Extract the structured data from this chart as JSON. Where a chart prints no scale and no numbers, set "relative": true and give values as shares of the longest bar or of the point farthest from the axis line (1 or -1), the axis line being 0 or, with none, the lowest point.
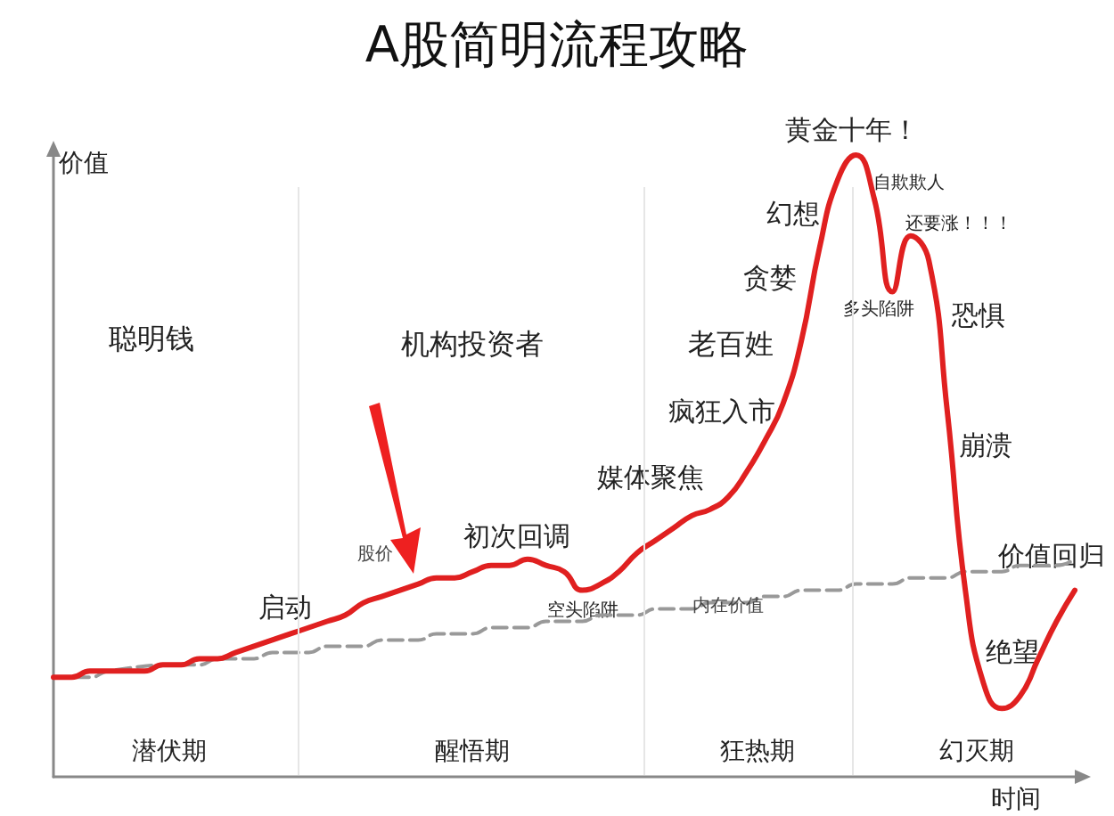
{
  "chart_data": {
    "type": "line",
    "title": "A股简明流程攻略",
    "xlabel": "时间",
    "ylabel": "价值",
    "relative": true,
    "categories": [
      null,
      null,
      null,
      null,
      null,
      null,
      null,
      null,
      null,
      null,
      null,
      null,
      null,
      null,
      null,
      null,
      null,
      null,
      null,
      null,
      null,
      null,
      null,
      null,
      null,
      null,
      null,
      null,
      null,
      null,
      null,
      null,
      null,
      null,
      null,
      null,
      null,
      null,
      null,
      null,
      null,
      null,
      null,
      null,
      null,
      null,
      null,
      null,
      null,
      null,
      null,
      null,
      null,
      null,
      null,
      null,
      null
    ],
    "series": [
      {
        "name": "股价",
        "color": "#e02020",
        "line_style": "solid",
        "values": [
          0.16,
          0.16,
          0.17,
          0.17,
          0.17,
          0.17,
          0.18,
          0.18,
          0.19,
          0.19,
          0.2,
          0.21,
          0.22,
          0.23,
          0.24,
          0.25,
          0.26,
          0.28,
          0.29,
          0.3,
          0.31,
          0.32,
          0.32,
          0.33,
          0.34,
          0.34,
          0.35,
          0.34,
          0.33,
          0.3,
          0.31,
          0.33,
          0.36,
          0.38,
          0.4,
          0.42,
          0.43,
          0.45,
          0.49,
          0.54,
          0.6,
          0.7,
          0.85,
          0.96,
          1,
          0.93,
          0.78,
          0.87,
          0.83,
          0.59,
          0.3,
          0.15,
          0.11,
          0.13,
          0.19,
          0.25,
          0.3
        ]
      },
      {
        "name": "内在价值",
        "color": "#999999",
        "line_style": "dashed",
        "values": [
          0.16,
          0.16,
          0.16,
          0.17,
          null,
          null,
          null,
          0.18,
          0.18,
          0.19,
          0.19,
          0.19,
          0.2,
          0.2,
          0.2,
          0.21,
          0.21,
          0.21,
          0.22,
          0.22,
          0.22,
          0.23,
          0.23,
          0.23,
          0.24,
          0.24,
          0.24,
          0.25,
          0.25,
          0.25,
          0.26,
          0.26,
          0.26,
          0.27,
          0.27,
          0.27,
          0.28,
          0.28,
          0.28,
          0.29,
          0.29,
          0.3,
          0.3,
          0.3,
          0.31,
          0.31,
          0.31,
          0.32,
          0.32,
          0.32,
          0.33,
          0.33,
          0.33,
          0.34,
          0.34,
          0.34,
          0.35
        ]
      }
    ],
    "annotations": [
      "聪明钱",
      "机构投资者",
      "老百姓",
      "启动",
      "初次回调",
      "空头陷阱",
      "媒体聚焦",
      "疯狂入市",
      "贪婪",
      "幻想",
      "黄金十年！",
      "自欺欺人",
      "多头陷阱",
      "还要涨！！！",
      "恐惧",
      "崩溃",
      "绝望",
      "价值回归",
      "潜伏期",
      "醒悟期",
      "狂热期",
      "幻灭期"
    ],
    "grid": false,
    "legend": false,
    "marker": "none"
  }
}
